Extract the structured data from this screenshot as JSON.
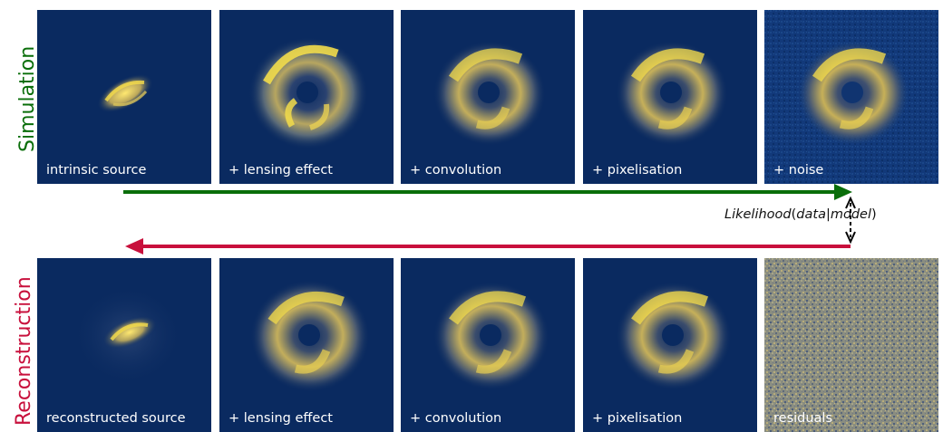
{
  "rows": {
    "top": {
      "label": "Simulation",
      "panels": [
        "intrinsic source",
        "+ lensing effect",
        "+ convolution",
        "+ pixelisation",
        "+ noise"
      ]
    },
    "bottom": {
      "label": "Reconstruction",
      "panels": [
        "reconstructed source",
        "+ lensing effect",
        "+ convolution",
        "+ pixelisation",
        "residuals"
      ]
    }
  },
  "likelihood": {
    "func": "Likelihood",
    "open": "(",
    "data": "data",
    "bar": "|",
    "model": "model",
    "close": ")"
  },
  "colors": {
    "simulation": "#0a6e0a",
    "reconstruction": "#c8103c",
    "panel_bg": "#0a2a60",
    "ring": "#e8cf52",
    "residual_bg": "#8a8d80"
  }
}
